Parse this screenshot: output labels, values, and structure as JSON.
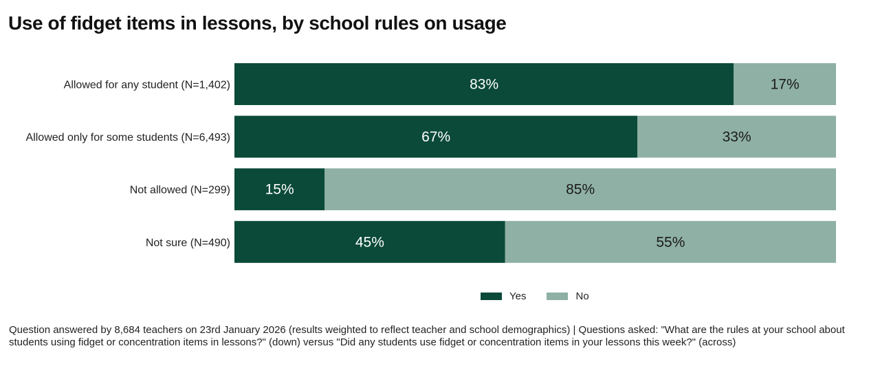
{
  "title": "Use of fidget items in lessons, by school rules on usage",
  "colors": {
    "yes": "#0b4a38",
    "no": "#8fb0a5",
    "yes_text": "#ffffff",
    "no_text": "#1a1a1a"
  },
  "legend": {
    "yes": "Yes",
    "no": "No"
  },
  "chart_data": {
    "type": "bar",
    "orientation": "horizontal",
    "stacked": true,
    "normalized": true,
    "categories": [
      "Allowed for any student (N=1,402)",
      "Allowed only for some students (N=6,493)",
      "Not allowed (N=299)",
      "Not sure (N=490)"
    ],
    "series": [
      {
        "name": "Yes",
        "values": [
          83,
          67,
          15,
          45
        ]
      },
      {
        "name": "No",
        "values": [
          17,
          33,
          85,
          55
        ]
      }
    ],
    "data_labels": [
      [
        "83%",
        "17%"
      ],
      [
        "67%",
        "33%"
      ],
      [
        "15%",
        "85%"
      ],
      [
        "45%",
        "55%"
      ]
    ],
    "xlim": [
      0,
      100
    ],
    "grid": false,
    "legend_position": "bottom"
  },
  "footnote": "Question answered by 8,684 teachers on 23rd January 2026 (results weighted to reflect teacher and school demographics) | Questions asked: \"What are the rules at your school about students using fidget or concentration items in lessons?\" (down) versus \"Did any students use fidget or concentration items in your lessons this week?\" (across)"
}
